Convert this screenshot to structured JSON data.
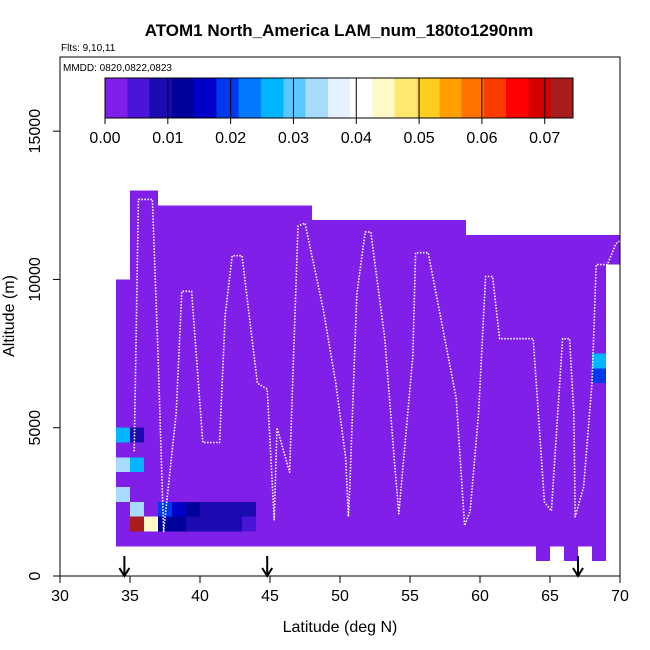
{
  "chart_data": {
    "type": "heatmap",
    "title": "ATOM1 North_America LAM_num_180to1290nm",
    "flights_label": "Flts: 9,10,11",
    "dates_label": "MMDD: 0820,0822,0823",
    "xlabel": "Latitude (deg N)",
    "ylabel": "Altitude (m)",
    "xlim": [
      30,
      70
    ],
    "ylim": [
      0,
      17500
    ],
    "x_ticks": [
      "30",
      "35",
      "40",
      "45",
      "50",
      "55",
      "60",
      "65",
      "70"
    ],
    "y_ticks": [
      "0",
      "5000",
      "10000",
      "15000"
    ],
    "colorbar": {
      "range": [
        0,
        0.0745
      ],
      "tick_labels": [
        "0.00",
        "0.01",
        "0.02",
        "0.03",
        "0.04",
        "0.05",
        "0.06",
        "0.07"
      ],
      "colors": [
        "#7f1fe8",
        "#4a15d8",
        "#1a0ab0",
        "#00009a",
        "#0000c8",
        "#0038ee",
        "#0078ff",
        "#00b4ff",
        "#5ac8ff",
        "#a8dcff",
        "#e4f2ff",
        "#ffffff",
        "#fff8c8",
        "#ffe870",
        "#ffcc20",
        "#ffa000",
        "#ff7400",
        "#ff3c00",
        "#ff0000",
        "#d40000",
        "#a81c1c"
      ]
    },
    "background_value": 0.0,
    "curtain": [
      {
        "lat": [
          34,
          35
        ],
        "alt": [
          1000,
          10000
        ]
      },
      {
        "lat": [
          35,
          37
        ],
        "alt": [
          1000,
          13000
        ]
      },
      {
        "lat": [
          37,
          48
        ],
        "alt": [
          1000,
          12500
        ]
      },
      {
        "lat": [
          48,
          59
        ],
        "alt": [
          1000,
          12000
        ]
      },
      {
        "lat": [
          59,
          64
        ],
        "alt": [
          1000,
          11500
        ]
      },
      {
        "lat": [
          64,
          65
        ],
        "alt": [
          500,
          11500
        ]
      },
      {
        "lat": [
          65,
          66
        ],
        "alt": [
          1000,
          11500
        ]
      },
      {
        "lat": [
          66,
          67
        ],
        "alt": [
          500,
          11500
        ]
      },
      {
        "lat": [
          67,
          68
        ],
        "alt": [
          1000,
          11500
        ]
      },
      {
        "lat": [
          68,
          69
        ],
        "alt": [
          500,
          11500
        ]
      },
      {
        "lat": [
          68,
          69
        ],
        "alt": [
          6000,
          11500
        ]
      },
      {
        "lat": [
          69,
          70
        ],
        "alt": [
          10500,
          11500
        ]
      }
    ],
    "cells": [
      {
        "lat": [
          34,
          35
        ],
        "alt": [
          4500,
          5000
        ],
        "value": 0.026
      },
      {
        "lat": [
          35,
          36
        ],
        "alt": [
          4500,
          5000
        ],
        "value": 0.009
      },
      {
        "lat": [
          34,
          35
        ],
        "alt": [
          3500,
          4000
        ],
        "value": 0.034
      },
      {
        "lat": [
          35,
          36
        ],
        "alt": [
          3500,
          4000
        ],
        "value": 0.027
      },
      {
        "lat": [
          34,
          35
        ],
        "alt": [
          2500,
          3000
        ],
        "value": 0.035
      },
      {
        "lat": [
          35,
          36
        ],
        "alt": [
          2000,
          2500
        ],
        "value": 0.033
      },
      {
        "lat": [
          35,
          36
        ],
        "alt": [
          1500,
          2000
        ],
        "value": 0.072
      },
      {
        "lat": [
          36,
          37
        ],
        "alt": [
          1500,
          2000
        ],
        "value": 0.046
      },
      {
        "lat": [
          37,
          38
        ],
        "alt": [
          2000,
          2500
        ],
        "value": 0.019
      },
      {
        "lat": [
          38,
          39
        ],
        "alt": [
          2000,
          2500
        ],
        "value": 0.017
      },
      {
        "lat": [
          39,
          40
        ],
        "alt": [
          2000,
          2500
        ],
        "value": 0.013
      },
      {
        "lat": [
          40,
          41
        ],
        "alt": [
          2000,
          2500
        ],
        "value": 0.01
      },
      {
        "lat": [
          41,
          42
        ],
        "alt": [
          2000,
          2500
        ],
        "value": 0.01
      },
      {
        "lat": [
          42,
          43
        ],
        "alt": [
          2000,
          2500
        ],
        "value": 0.01
      },
      {
        "lat": [
          43,
          44
        ],
        "alt": [
          2000,
          2500
        ],
        "value": 0.008
      },
      {
        "lat": [
          37,
          38
        ],
        "alt": [
          1500,
          2000
        ],
        "value": 0.012
      },
      {
        "lat": [
          38,
          39
        ],
        "alt": [
          1500,
          2000
        ],
        "value": 0.013
      },
      {
        "lat": [
          39,
          40
        ],
        "alt": [
          1500,
          2000
        ],
        "value": 0.01
      },
      {
        "lat": [
          40,
          41
        ],
        "alt": [
          1500,
          2000
        ],
        "value": 0.01
      },
      {
        "lat": [
          41,
          42
        ],
        "alt": [
          1500,
          2000
        ],
        "value": 0.01
      },
      {
        "lat": [
          42,
          43
        ],
        "alt": [
          1500,
          2000
        ],
        "value": 0.009
      },
      {
        "lat": [
          43,
          44
        ],
        "alt": [
          1500,
          2000
        ],
        "value": 0.005
      },
      {
        "lat": [
          44,
          45
        ],
        "alt": [
          1500,
          2000
        ],
        "value": 0.003
      },
      {
        "lat": [
          68,
          69
        ],
        "alt": [
          7000,
          7500
        ],
        "value": 0.028
      },
      {
        "lat": [
          68,
          69
        ],
        "alt": [
          6500,
          7000
        ],
        "value": 0.018
      }
    ],
    "flight_track": [
      [
        35.3,
        4200
      ],
      [
        35.6,
        12700
      ],
      [
        36.6,
        12700
      ],
      [
        37.0,
        7500
      ],
      [
        37.4,
        1500
      ],
      [
        38.3,
        5500
      ],
      [
        38.7,
        9600
      ],
      [
        39.4,
        9600
      ],
      [
        40.2,
        4500
      ],
      [
        41.4,
        4500
      ],
      [
        41.8,
        8800
      ],
      [
        42.3,
        10800
      ],
      [
        43.0,
        10800
      ],
      [
        44.1,
        6500
      ],
      [
        44.8,
        6300
      ],
      [
        45.3,
        1900
      ],
      [
        45.5,
        5000
      ],
      [
        46.4,
        3500
      ],
      [
        47.0,
        11800
      ],
      [
        47.5,
        11900
      ],
      [
        48.8,
        9000
      ],
      [
        49.7,
        6500
      ],
      [
        50.4,
        4000
      ],
      [
        50.6,
        2000
      ],
      [
        50.7,
        3000
      ],
      [
        51.2,
        9500
      ],
      [
        51.8,
        11600
      ],
      [
        52.2,
        11600
      ],
      [
        53.2,
        8000
      ],
      [
        53.9,
        3800
      ],
      [
        54.2,
        2100
      ],
      [
        55.2,
        7400
      ],
      [
        55.4,
        10900
      ],
      [
        56.3,
        10900
      ],
      [
        58.3,
        6000
      ],
      [
        58.9,
        1700
      ],
      [
        59.3,
        2200
      ],
      [
        59.9,
        5500
      ],
      [
        60.4,
        10100
      ],
      [
        60.9,
        10100
      ],
      [
        61.4,
        8000
      ],
      [
        63.8,
        8000
      ],
      [
        64.6,
        2500
      ],
      [
        65.1,
        2200
      ],
      [
        65.9,
        8000
      ],
      [
        66.4,
        8000
      ],
      [
        66.7,
        5500
      ],
      [
        66.8,
        2000
      ],
      [
        67.4,
        3000
      ],
      [
        68.0,
        6500
      ],
      [
        68.3,
        10500
      ],
      [
        69.1,
        10500
      ],
      [
        69.7,
        11200
      ],
      [
        70.0,
        11300
      ]
    ],
    "markers_lat": [
      34.6,
      44.8,
      67.0
    ]
  }
}
